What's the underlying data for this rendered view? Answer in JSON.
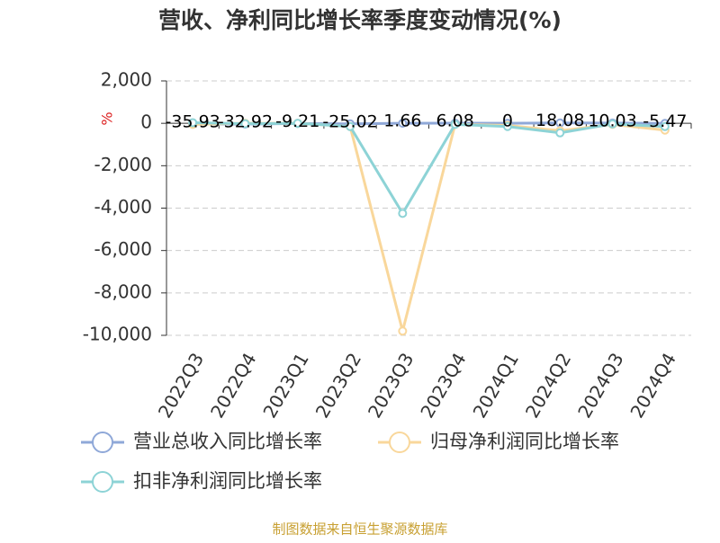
{
  "chart_data": {
    "type": "line",
    "title": "营收、净利同比增长率季度变动情况(%)",
    "y_label": "%",
    "categories": [
      "2022Q3",
      "2022Q4",
      "2023Q1",
      "2023Q2",
      "2023Q3",
      "2023Q4",
      "2024Q1",
      "2024Q2",
      "2024Q3",
      "2024Q4"
    ],
    "series": [
      {
        "name": "营业总收入同比增长率",
        "color": "#8fa8d8",
        "values": [
          -35.93,
          -32.92,
          -9.21,
          -25.02,
          1.66,
          6.08,
          0,
          18.08,
          10.03,
          -5.47
        ]
      },
      {
        "name": "归母净利润同比增长率",
        "color": "#f9d79b",
        "values": [
          -50,
          0,
          0,
          -150,
          -9800,
          -50,
          -100,
          -350,
          -50,
          -320
        ]
      },
      {
        "name": "扣非净利润同比增长率",
        "color": "#8dd3d6",
        "values": [
          30,
          -20,
          0,
          -150,
          -4250,
          -50,
          -150,
          -450,
          -30,
          -150
        ]
      }
    ],
    "ylim": [
      -10000,
      2000
    ],
    "yticks": [
      {
        "value": -10000,
        "label": "-10,000"
      },
      {
        "value": -8000,
        "label": "-8,000"
      },
      {
        "value": -6000,
        "label": "-6,000"
      },
      {
        "value": -4000,
        "label": "-4,000"
      },
      {
        "value": -2000,
        "label": "-2,000"
      },
      0,
      {
        "value": 2000,
        "label": "2,000"
      }
    ],
    "grid": true,
    "data_labels_series": 0,
    "source": "制图数据来自恒生聚源数据库"
  }
}
